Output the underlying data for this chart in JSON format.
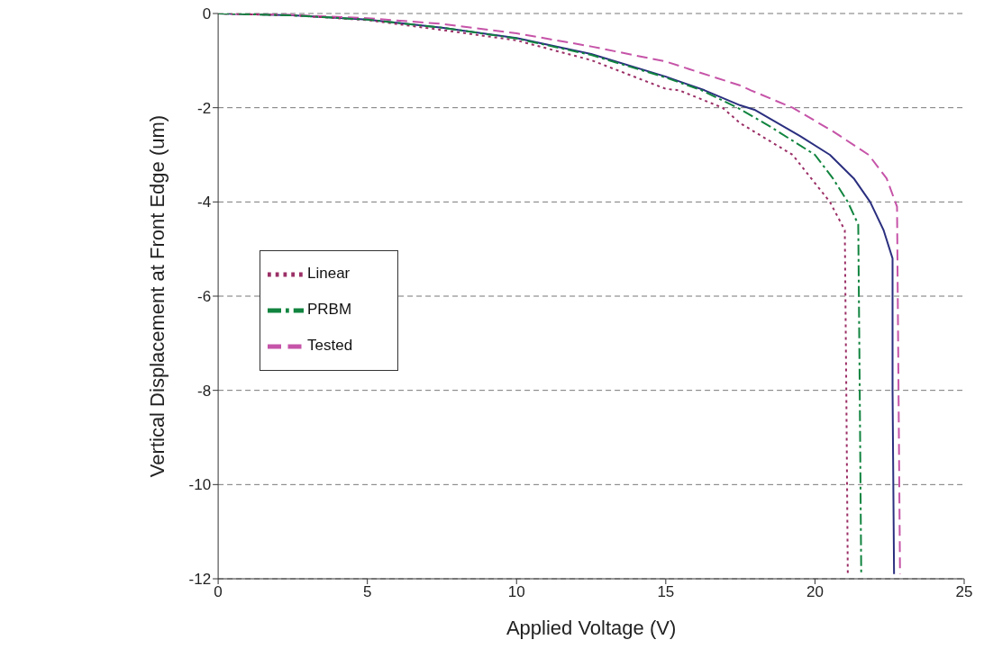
{
  "chart_data": {
    "type": "line",
    "xlabel": "Applied Voltage (V)",
    "ylabel": "Vertical Displacement at Front Edge (um)",
    "xlim": [
      0,
      25
    ],
    "xticks": [
      0,
      5,
      10,
      15,
      20,
      25
    ],
    "ylim": [
      -12,
      0
    ],
    "yticks": [
      -12,
      -10,
      -8,
      -6,
      -4,
      -2,
      0
    ],
    "grid": "y",
    "legend": "left",
    "marker": "none",
    "series": [
      {
        "color": "#2b2f7f",
        "line_style": "solid",
        "x": [
          0,
          2.5,
          5,
          7.5,
          10,
          12.5,
          15,
          16.3,
          17.5,
          18,
          19.5,
          20.5,
          21.3,
          21.85,
          22.3,
          22.6,
          22.6,
          22.65
        ],
        "values": [
          0,
          -0.04,
          -0.13,
          -0.3,
          -0.52,
          -0.86,
          -1.34,
          -1.63,
          -1.95,
          -2.05,
          -2.6,
          -3,
          -3.5,
          -4,
          -4.6,
          -5.2,
          -8,
          -11.9
        ]
      },
      {
        "name": "Tested",
        "color": "#c654a8",
        "line_style": "dashed",
        "x": [
          0,
          2.5,
          5,
          7.5,
          10,
          12.5,
          15,
          17.5,
          17.85,
          19.25,
          20.6,
          21.8,
          22.4,
          22.75,
          22.8,
          22.85
        ],
        "values": [
          0,
          -0.03,
          -0.1,
          -0.22,
          -0.42,
          -0.7,
          -1.02,
          -1.53,
          -1.63,
          -2,
          -2.5,
          -3,
          -3.5,
          -4.1,
          -8,
          -11.9
        ]
      },
      {
        "name": "Linear",
        "color": "#9b2f66",
        "line_style": "dotted",
        "x": [
          0,
          2.5,
          5,
          7.5,
          10,
          12.5,
          15,
          15.45,
          16.9,
          17.5,
          19.25,
          20.5,
          21,
          21.05,
          21.1
        ],
        "values": [
          0,
          -0.04,
          -0.14,
          -0.35,
          -0.57,
          -0.99,
          -1.6,
          -1.63,
          -2,
          -2.33,
          -3,
          -4,
          -4.6,
          -8,
          -11.9
        ]
      },
      {
        "name": "PRBM",
        "color": "#11843f",
        "line_style": "dashdot",
        "x": [
          0,
          2.5,
          5,
          7.5,
          10,
          12.5,
          15,
          16.2,
          17.4,
          18.5,
          20,
          20.6,
          21.1,
          21.45,
          21.5,
          21.55
        ],
        "values": [
          0,
          -0.04,
          -0.13,
          -0.3,
          -0.53,
          -0.88,
          -1.36,
          -1.63,
          -2,
          -2.4,
          -3,
          -3.5,
          -4,
          -4.48,
          -8,
          -11.9
        ]
      }
    ]
  }
}
